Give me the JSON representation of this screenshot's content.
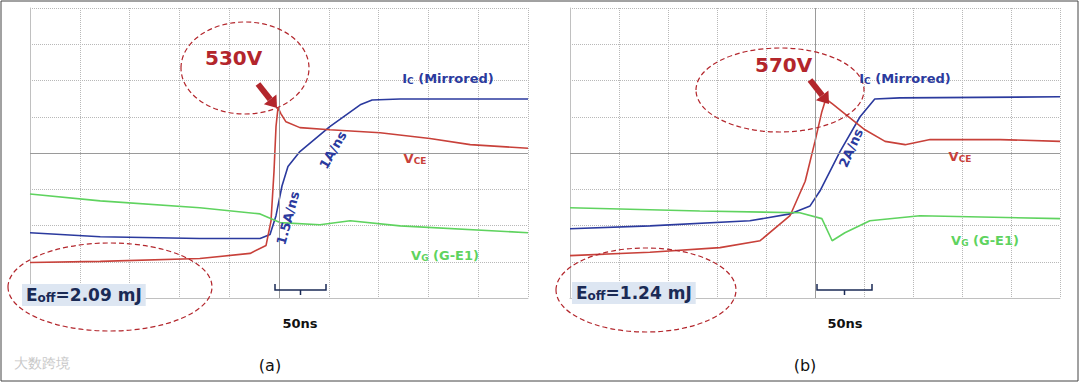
{
  "watermark": "大数跨境",
  "chart_data": [
    {
      "type": "line",
      "panel_label": "(a)",
      "grid": true,
      "tick_labels": false,
      "xlim": [
        0,
        10
      ],
      "xticks": [
        0,
        1,
        2,
        3,
        4,
        5,
        6,
        7,
        8,
        9,
        10
      ],
      "ylim": [
        0,
        8
      ],
      "yticks": [
        0,
        1,
        2,
        3,
        4,
        5,
        6,
        7,
        8
      ],
      "peak_label": "530V",
      "slope_labels": [
        "1.5A/ns",
        "1A/ns"
      ],
      "energy_label": "Eoff=2.09 mJ",
      "time_span_label": "50ns",
      "series": [
        {
          "name": "IC (Mirrored)",
          "color": "#2b3a9e",
          "x": [
            0,
            1.41,
            3.41,
            4.62,
            4.82,
            4.94,
            5.06,
            5.18,
            5.42,
            6.02,
            6.63,
            6.87,
            7.43,
            10
          ],
          "values": [
            1.8,
            1.69,
            1.64,
            1.64,
            1.75,
            2.27,
            3.09,
            3.63,
            4.04,
            4.73,
            5.33,
            5.46,
            5.49,
            5.49
          ]
        },
        {
          "name": "VCE",
          "color": "#c8413a",
          "x": [
            0,
            1.41,
            3.41,
            4.42,
            4.74,
            4.84,
            4.9,
            4.94,
            4.98,
            5.04,
            5.14,
            5.42,
            6.02,
            7.03,
            8.03,
            8.84,
            10
          ],
          "values": [
            0.98,
            1.01,
            1.09,
            1.23,
            1.45,
            2.13,
            3.5,
            4.73,
            5.25,
            5.08,
            4.86,
            4.7,
            4.64,
            4.56,
            4.4,
            4.23,
            4.13
          ]
        },
        {
          "name": "VG (G-E1)",
          "color": "#5fd35f",
          "x": [
            0,
            1.41,
            3.41,
            4.62,
            5.02,
            5.82,
            6.43,
            7.43,
            10
          ],
          "values": [
            2.87,
            2.68,
            2.49,
            2.32,
            2.08,
            2.02,
            2.13,
            1.99,
            1.8
          ]
        }
      ]
    },
    {
      "type": "line",
      "panel_label": "(b)",
      "grid": true,
      "tick_labels": false,
      "xlim": [
        0,
        10
      ],
      "xticks": [
        0,
        1,
        2,
        3,
        4,
        5,
        6,
        7,
        8,
        9,
        10
      ],
      "ylim": [
        0,
        8
      ],
      "yticks": [
        0,
        1,
        2,
        3,
        4,
        5,
        6,
        7,
        8
      ],
      "peak_label": "570V",
      "slope_labels": [
        "2A/ns"
      ],
      "energy_label": "Eoff=1.24 mJ",
      "time_span_label": "50ns",
      "series": [
        {
          "name": "IC (Mirrored)",
          "color": "#2b3a9e",
          "x": [
            0,
            1.63,
            3.67,
            4.49,
            4.9,
            5.1,
            5.51,
            5.92,
            6.22,
            6.73,
            10
          ],
          "values": [
            1.91,
            1.99,
            2.13,
            2.32,
            2.54,
            2.95,
            4.04,
            5.0,
            5.49,
            5.52,
            5.55
          ]
        },
        {
          "name": "VCE",
          "color": "#c8413a",
          "x": [
            0,
            1.63,
            3.06,
            3.88,
            4.49,
            4.8,
            5.0,
            5.14,
            5.22,
            5.35,
            5.61,
            6.02,
            6.43,
            6.84,
            7.35,
            8.78,
            10
          ],
          "values": [
            1.17,
            1.26,
            1.39,
            1.58,
            2.27,
            3.22,
            4.32,
            5.14,
            5.49,
            5.36,
            5.08,
            4.64,
            4.32,
            4.23,
            4.37,
            4.37,
            4.32
          ]
        },
        {
          "name": "VG (G-E1)",
          "color": "#5fd35f",
          "x": [
            0,
            2.65,
            4.69,
            5.14,
            5.35,
            5.61,
            6.12,
            7.14,
            10
          ],
          "values": [
            2.49,
            2.4,
            2.35,
            2.19,
            1.58,
            1.8,
            2.13,
            2.27,
            2.19
          ]
        }
      ]
    }
  ]
}
